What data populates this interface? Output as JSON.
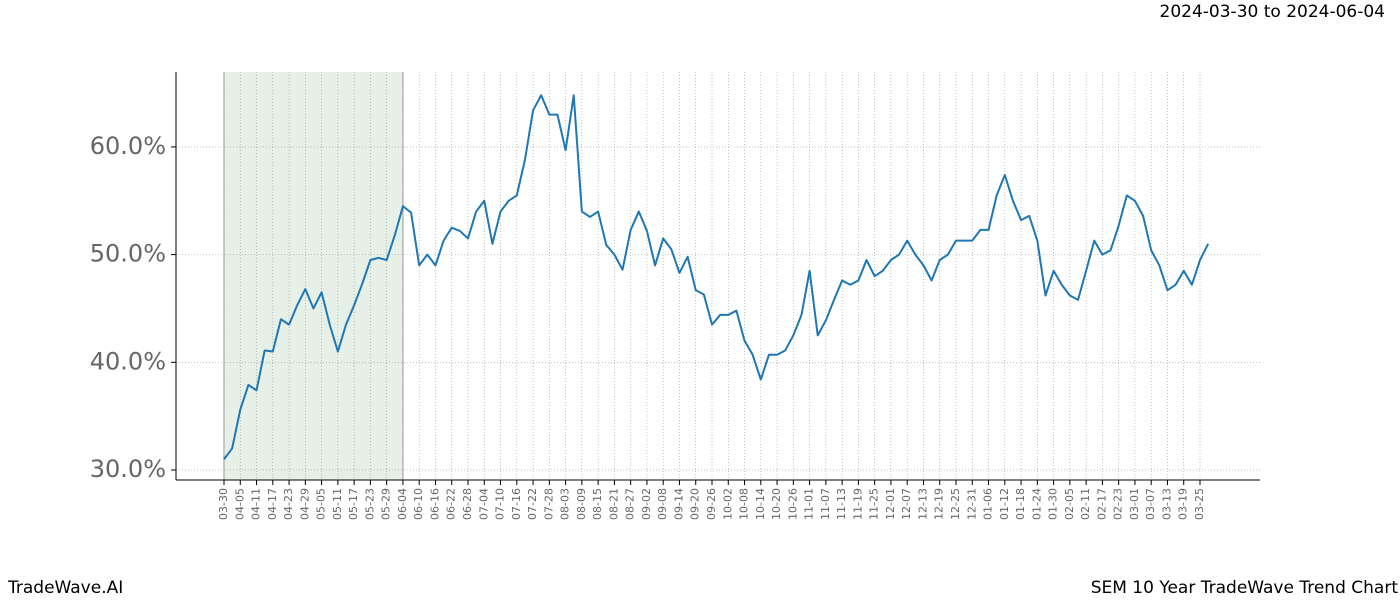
{
  "chart_data": {
    "type": "line",
    "subtitle": "2024-03-30 to 2024-06-04",
    "footer_left": "TradeWave.AI",
    "footer_right": "SEM 10 Year TradeWave Trend Chart",
    "categories": [
      "03-30",
      null,
      "04-05",
      null,
      "04-11",
      null,
      "04-17",
      null,
      "04-23",
      null,
      "04-29",
      null,
      "05-05",
      null,
      "05-11",
      null,
      "05-17",
      null,
      "05-23",
      null,
      "05-29",
      null,
      "06-04",
      null,
      "06-10",
      null,
      "06-16",
      null,
      "06-22",
      null,
      "06-28",
      null,
      "07-04",
      null,
      "07-10",
      null,
      "07-16",
      null,
      "07-22",
      null,
      "07-28",
      null,
      "08-03",
      null,
      "08-09",
      null,
      "08-15",
      null,
      "08-21",
      null,
      "08-27",
      null,
      "09-02",
      null,
      "09-08",
      null,
      "09-14",
      null,
      "09-20",
      null,
      "09-26",
      null,
      "10-02",
      null,
      "10-08",
      null,
      "10-14",
      null,
      "10-20",
      null,
      "10-26",
      null,
      "11-01",
      null,
      "11-07",
      null,
      "11-13",
      null,
      "11-19",
      null,
      "11-25",
      null,
      "12-01",
      null,
      "12-07",
      null,
      "12-13",
      null,
      "12-19",
      null,
      "12-25",
      null,
      "12-31",
      null,
      "01-06",
      null,
      "01-12",
      null,
      "01-18",
      null,
      "01-24",
      null,
      "01-30",
      null,
      "02-05",
      null,
      "02-11",
      null,
      "02-17",
      null,
      "02-23",
      null,
      "03-01",
      null,
      "03-07",
      null,
      "03-13",
      null,
      "03-19",
      null,
      "03-25",
      null
    ],
    "values": [
      31,
      32,
      35.6,
      37.9,
      37.4,
      41.1,
      41,
      44,
      43.5,
      45.3,
      46.8,
      45,
      46.5,
      43.5,
      41,
      43.5,
      45.3,
      47.3,
      49.5,
      49.7,
      49.5,
      51.8,
      54.5,
      53.9,
      49,
      50,
      49,
      51.3,
      52.5,
      52.2,
      51.5,
      54,
      55,
      51,
      54,
      55,
      55.5,
      58.8,
      63.4,
      64.8,
      63,
      63,
      59.7,
      64.8,
      54,
      53.5,
      54,
      50.9,
      50,
      48.6,
      52.3,
      54,
      52.2,
      49,
      51.5,
      50.5,
      48.3,
      49.8,
      46.7,
      46.3,
      43.5,
      44.4,
      44.4,
      44.8,
      42,
      40.7,
      38.4,
      40.7,
      40.7,
      41.1,
      42.5,
      44.4,
      48.5,
      42.5,
      43.9,
      45.8,
      47.6,
      47.2,
      47.6,
      49.5,
      48,
      48.5,
      49.5,
      50,
      51.3,
      50,
      49,
      47.6,
      49.5,
      50,
      51.3,
      51.3,
      51.3,
      52.3,
      52.3,
      55.5,
      57.4,
      55,
      53.2,
      53.6,
      51.3,
      46.2,
      48.5,
      47.2,
      46.2,
      45.8,
      48.5,
      51.3,
      50,
      50.4,
      52.7,
      55.5,
      55,
      53.6,
      50.4,
      49,
      46.7,
      47.2,
      48.5,
      47.2,
      49.5,
      51
    ],
    "color": "#1f77b4",
    "highlight": {
      "start": "03-30",
      "end": "06-04",
      "color": "#e6f0e6"
    },
    "ylim": [
      29.07,
      66.96
    ],
    "yticks": [
      {
        "value": 30,
        "label": "30.0%"
      },
      {
        "value": 40,
        "label": "40.0%"
      },
      {
        "value": 50,
        "label": "50.0%"
      },
      {
        "value": 60,
        "label": "60.0%"
      }
    ],
    "grid": true
  }
}
